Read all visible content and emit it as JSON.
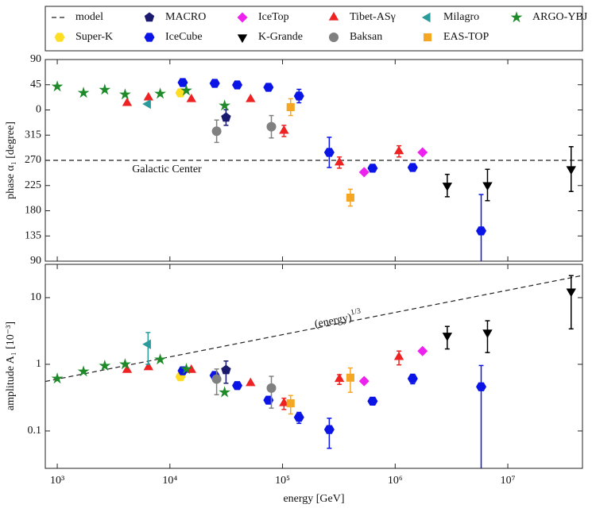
{
  "chart_data": {
    "type": "scatter",
    "xlabel": "energy [GeV]",
    "phase_label": "phase α₁ [degree]",
    "amplitude_label": "amplitude A₁ [10⁻³]",
    "x_log": true,
    "xlim": [
      783,
      46000000
    ],
    "xticks": [
      {
        "value": 1000,
        "label": "10³"
      },
      {
        "value": 10000,
        "label": "10⁴"
      },
      {
        "value": 100000,
        "label": "10⁵"
      },
      {
        "value": 1000000,
        "label": "10⁶"
      },
      {
        "value": 10000000,
        "label": "10⁷"
      }
    ],
    "phase_ylim": [
      -270,
      90
    ],
    "phase_yticks": [
      90,
      45,
      0,
      {
        "value": -45,
        "label": "315"
      },
      {
        "value": -90,
        "label": "270"
      },
      {
        "value": -135,
        "label": "225"
      },
      {
        "value": -180,
        "label": "180"
      },
      {
        "value": -225,
        "label": "135"
      },
      {
        "value": -270,
        "label": "90"
      }
    ],
    "amplitude_log": true,
    "amplitude_ylim": [
      0.0275,
      31.6
    ],
    "amplitude_yticks": [
      0.1,
      1,
      10
    ],
    "annotations": {
      "galactic_center": "Galactic Center",
      "energy": "(energy)",
      "exponent": "1/3"
    },
    "model": {
      "name": "model",
      "color": "#222222",
      "phase": -90,
      "x": [
        783,
        46000000
      ],
      "amplitude": [
        0.553,
        21.5
      ]
    },
    "series": [
      {
        "name": "Super-K",
        "color": "#ffdd22",
        "marker": "hexagon",
        "x": [
          12400
        ],
        "phase": [
          30.5
        ],
        "phase_err": [
          null
        ],
        "amplitude": [
          0.65
        ],
        "amplitude_err": [
          null
        ]
      },
      {
        "name": "MACRO",
        "color": "#1a1a6e",
        "marker": "pentagon",
        "x": [
          31500
        ],
        "phase": [
          -13.5
        ],
        "phase_err": [
          14
        ],
        "amplitude": [
          0.82
        ],
        "amplitude_err": [
          0.3
        ]
      },
      {
        "name": "IceCube",
        "color": "#0a14e6",
        "marker": "hexagon",
        "x": [
          13000,
          25000,
          39600,
          75000,
          140000,
          260000,
          630000,
          1430000,
          5800000
        ],
        "phase": [
          48.9,
          47.5,
          44.7,
          40.4,
          24.8,
          -75.8,
          -104,
          -102.7,
          -216
        ],
        "phase_err": [
          null,
          null,
          null,
          null,
          12,
          27,
          6,
          5,
          65
        ],
        "amplitude": [
          0.8,
          0.68,
          0.48,
          0.29,
          0.16,
          0.105,
          0.28,
          0.61,
          0.46
        ],
        "amplitude_err": [
          null,
          null,
          null,
          null,
          0.03,
          0.05,
          0.03,
          0.1,
          0.5
        ]
      },
      {
        "name": "IceTop",
        "color": "#ee22ee",
        "marker": "diamond",
        "x": [
          530000,
          1750000
        ],
        "phase": [
          -111,
          -75.8
        ],
        "phase_err": [
          null,
          null
        ],
        "amplitude": [
          0.56,
          1.58
        ],
        "amplitude_err": [
          null,
          null
        ]
      },
      {
        "name": "K-Grande",
        "color": "#000000",
        "marker": "triangle-down",
        "x": [
          2900000,
          6600000,
          36500000
        ],
        "phase": [
          -135,
          -134,
          -105.6
        ],
        "phase_err": [
          20,
          28,
          40
        ],
        "amplitude": [
          2.7,
          3.0,
          12.4
        ],
        "amplitude_err": [
          1,
          1.5,
          9
        ]
      },
      {
        "name": "Tibet-ASγ",
        "color": "#ee2222",
        "marker": "triangle-up",
        "x": [
          4170,
          6450,
          15500,
          52000,
          103000,
          320000,
          1080000
        ],
        "phase": [
          12.1,
          22,
          19,
          19,
          -37.5,
          -94,
          -74
        ],
        "phase_err": [
          null,
          null,
          null,
          null,
          10,
          10,
          10
        ],
        "amplitude": [
          0.82,
          0.9,
          0.82,
          0.52,
          0.26,
          0.6,
          1.28
        ],
        "amplitude_err": [
          null,
          null,
          null,
          null,
          0.05,
          0.1,
          0.3
        ]
      },
      {
        "name": "Baksan",
        "color": "#808080",
        "marker": "circle",
        "x": [
          26000,
          79600
        ],
        "phase": [
          -38,
          -30
        ],
        "phase_err": [
          20,
          20
        ],
        "amplitude": [
          0.6,
          0.44
        ],
        "amplitude_err": [
          0.25,
          0.22
        ]
      },
      {
        "name": "Milagro",
        "color": "#2a9a9a",
        "marker": "triangle-left",
        "x": [
          6400
        ],
        "phase": [
          10.6
        ],
        "phase_err": [
          null
        ],
        "amplitude": [
          2.0
        ],
        "amplitude_err": [
          1.0
        ]
      },
      {
        "name": "EAS-TOP",
        "color": "#f5a623",
        "marker": "square",
        "x": [
          118000,
          400000
        ],
        "phase": [
          5,
          -156.6
        ],
        "phase_err": [
          15,
          15
        ],
        "amplitude": [
          0.26,
          0.63
        ],
        "amplitude_err": [
          0.08,
          0.25
        ]
      },
      {
        "name": "ARGO-YBJ",
        "color": "#1e8a2a",
        "marker": "star",
        "x": [
          1000,
          1710,
          2640,
          4000,
          8200,
          14000,
          30600
        ],
        "phase": [
          41.8,
          30.5,
          36,
          27.6,
          29,
          34.7,
          7.8
        ],
        "phase_err": [
          null,
          null,
          null,
          null,
          null,
          null,
          null
        ],
        "amplitude": [
          0.61,
          0.78,
          0.95,
          1.0,
          1.18,
          0.85,
          0.38
        ],
        "amplitude_err": [
          null,
          null,
          null,
          null,
          null,
          null,
          null
        ]
      }
    ]
  }
}
